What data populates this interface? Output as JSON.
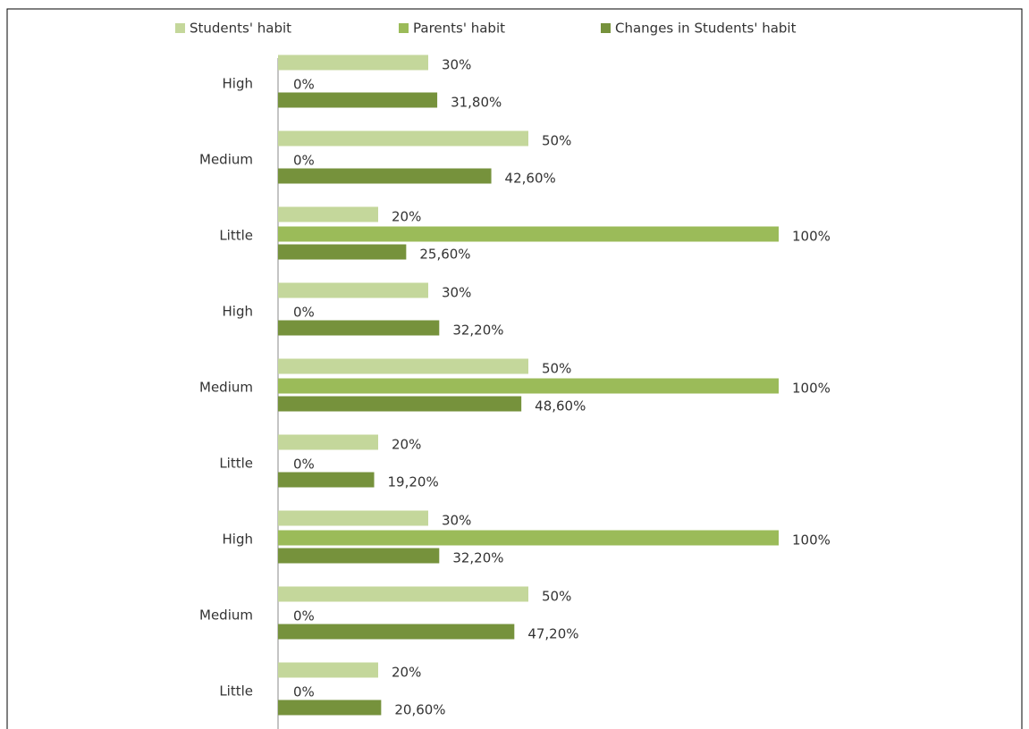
{
  "chart_data": {
    "type": "hbar",
    "categories": [
      "High",
      "Medium",
      "Little",
      "High",
      "Medium",
      "Little",
      "High",
      "Medium",
      "Little"
    ],
    "series": [
      {
        "name": "Students' habit",
        "color": "#c4d79b",
        "values": [
          30,
          50,
          20,
          30,
          50,
          20,
          30,
          50,
          20
        ],
        "value_labels": [
          "30%",
          "50%",
          "20%",
          "30%",
          "50%",
          "20%",
          "30%",
          "50%",
          "20%"
        ]
      },
      {
        "name": "Parents' habit",
        "color": "#9bbb59",
        "values": [
          0,
          0,
          100,
          0,
          100,
          0,
          100,
          0,
          0
        ],
        "value_labels": [
          "0%",
          "0%",
          "100%",
          "0%",
          "100%",
          "0%",
          "100%",
          "0%",
          "0%"
        ]
      },
      {
        "name": "Changes in Students' habit",
        "color": "#76923c",
        "values": [
          31.8,
          42.6,
          25.6,
          32.2,
          48.6,
          19.2,
          32.2,
          47.2,
          20.6
        ],
        "value_labels": [
          "31,80%",
          "42,60%",
          "25,60%",
          "32,20%",
          "48,60%",
          "19,20%",
          "32,20%",
          "47,20%",
          "20,60%"
        ]
      }
    ],
    "legend": "top"
  }
}
